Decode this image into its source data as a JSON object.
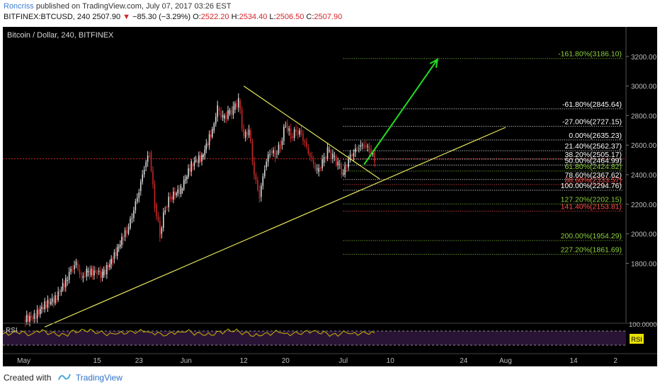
{
  "header": {
    "author": "Roncriss",
    "published": "published on TradingView.com, July 07, 2017 03:26 EST",
    "symbol": "BITFINEX:BTCUSD, 240",
    "last": "2507.90",
    "change": "−85.30 (−3.29%)",
    "o_label": "O:",
    "o_value": "2522.20",
    "h_label": "H:",
    "h_value": "2534.40",
    "l_label": "L:",
    "l_value": "2506.50",
    "c_label": "C:",
    "c_value": "2507.90"
  },
  "footer": {
    "created_with": "Created with",
    "brand": "TradingView"
  },
  "colors": {
    "up": "#d9d9d9",
    "down": "#c62828",
    "background": "#000000",
    "triangle": "#e6e65a",
    "arrow": "#22dd22",
    "fib_white": "#ffffff",
    "fib_green": "#8ccf3f",
    "fib_red": "#ff4d4d",
    "rsi_line": "#c8b400"
  },
  "chart_data": {
    "type": "candlestick",
    "title": "Bitcoin / Dollar, 240, BITFINEX",
    "price_axis": {
      "ticks": [
        "3200.00",
        "3000.00",
        "2800.00",
        "2600.00",
        "2400.00",
        "2200.00",
        "2000.00",
        "1800.00"
      ]
    },
    "time_axis": {
      "ticks": [
        "May",
        "15",
        "23",
        "Jun",
        "12",
        "20",
        "Jul",
        "10",
        "24",
        "Aug",
        "14",
        "2"
      ]
    },
    "price_close_series": [
      [
        "2017-05-01",
        1420
      ],
      [
        "2017-05-03",
        1440
      ],
      [
        "2017-05-05",
        1520
      ],
      [
        "2017-05-07",
        1560
      ],
      [
        "2017-05-09",
        1680
      ],
      [
        "2017-05-10",
        1760
      ],
      [
        "2017-05-11",
        1800
      ],
      [
        "2017-05-12",
        1700
      ],
      [
        "2017-05-13",
        1740
      ],
      [
        "2017-05-15",
        1740
      ],
      [
        "2017-05-16",
        1720
      ],
      [
        "2017-05-18",
        1830
      ],
      [
        "2017-05-20",
        1980
      ],
      [
        "2017-05-21",
        2040
      ],
      [
        "2017-05-22",
        2160
      ],
      [
        "2017-05-23",
        2290
      ],
      [
        "2017-05-24",
        2450
      ],
      [
        "2017-05-25",
        2550
      ],
      [
        "2017-05-26",
        2200
      ],
      [
        "2017-05-27",
        2000
      ],
      [
        "2017-05-28",
        2180
      ],
      [
        "2017-05-29",
        2250
      ],
      [
        "2017-05-31",
        2300
      ],
      [
        "2017-06-02",
        2470
      ],
      [
        "2017-06-04",
        2520
      ],
      [
        "2017-06-06",
        2700
      ],
      [
        "2017-06-07",
        2850
      ],
      [
        "2017-06-08",
        2780
      ],
      [
        "2017-06-09",
        2810
      ],
      [
        "2017-06-10",
        2840
      ],
      [
        "2017-06-11",
        2900
      ],
      [
        "2017-06-12",
        2650
      ],
      [
        "2017-06-13",
        2700
      ],
      [
        "2017-06-14",
        2400
      ],
      [
        "2017-06-15",
        2250
      ],
      [
        "2017-06-16",
        2450
      ],
      [
        "2017-06-17",
        2560
      ],
      [
        "2017-06-18",
        2540
      ],
      [
        "2017-06-19",
        2600
      ],
      [
        "2017-06-20",
        2750
      ],
      [
        "2017-06-21",
        2660
      ],
      [
        "2017-06-22",
        2700
      ],
      [
        "2017-06-23",
        2680
      ],
      [
        "2017-06-24",
        2580
      ],
      [
        "2017-06-25",
        2500
      ],
      [
        "2017-06-26",
        2420
      ],
      [
        "2017-06-27",
        2480
      ],
      [
        "2017-06-28",
        2560
      ],
      [
        "2017-06-29",
        2520
      ],
      [
        "2017-06-30",
        2470
      ],
      [
        "2017-07-01",
        2400
      ],
      [
        "2017-07-02",
        2500
      ],
      [
        "2017-07-03",
        2550
      ],
      [
        "2017-07-04",
        2590
      ],
      [
        "2017-07-05",
        2600
      ],
      [
        "2017-07-06",
        2570
      ],
      [
        "2017-07-07",
        2508
      ]
    ],
    "trendlines": [
      {
        "name": "descending resistance",
        "from": [
          "2017-06-12",
          3000
        ],
        "to": [
          "2017-07-08",
          2370
        ]
      },
      {
        "name": "ascending support",
        "from": [
          "2017-05-05",
          1370
        ],
        "to": [
          "2017-08-01",
          2720
        ]
      }
    ],
    "projection_arrow": {
      "from": [
        "2017-07-05",
        2470
      ],
      "to": [
        "2017-07-19",
        3180
      ]
    },
    "fibonacci_levels": [
      {
        "label": "-161.80%(3186.10)",
        "price": 3186.1,
        "color": "green"
      },
      {
        "label": "-61.80%(2845.64)",
        "price": 2845.64,
        "color": "white"
      },
      {
        "label": "-27.00%(2727.15)",
        "price": 2727.15,
        "color": "white"
      },
      {
        "label": "0.00%(2635.23)",
        "price": 2635.23,
        "color": "white"
      },
      {
        "label": "21.40%(2562.37)",
        "price": 2562.37,
        "color": "white"
      },
      {
        "label": "38.20%(2505.17)",
        "price": 2505.17,
        "color": "white"
      },
      {
        "label": "50.00%(2464.99)",
        "price": 2464.99,
        "color": "white"
      },
      {
        "label": "61.80%(2424.82)",
        "price": 2424.82,
        "color": "green"
      },
      {
        "label": "78.60%(2367.62)",
        "price": 2367.62,
        "color": "white"
      },
      {
        "label": "88.60%(2333.57)",
        "price": 2333.57,
        "color": "red"
      },
      {
        "label": "100.00%(2294.76)",
        "price": 2294.76,
        "color": "white"
      },
      {
        "label": "127.20%(2202.15)",
        "price": 2202.15,
        "color": "green"
      },
      {
        "label": "141.40%(2153.81)",
        "price": 2153.81,
        "color": "red"
      },
      {
        "label": "200.00%(1954.29)",
        "price": 1954.29,
        "color": "green"
      },
      {
        "label": "227.20%(1861.69)",
        "price": 1861.69,
        "color": "green"
      }
    ],
    "rsi": {
      "label": "RSI",
      "scale_label": "100.0000",
      "values": [
        50,
        55,
        48,
        60,
        52,
        47,
        58,
        62,
        55,
        49,
        53,
        57,
        60,
        52,
        46,
        54,
        59,
        51,
        48,
        56,
        61,
        53,
        45,
        50,
        57,
        49,
        52,
        58,
        54,
        47,
        55,
        50,
        53,
        48
      ]
    }
  }
}
